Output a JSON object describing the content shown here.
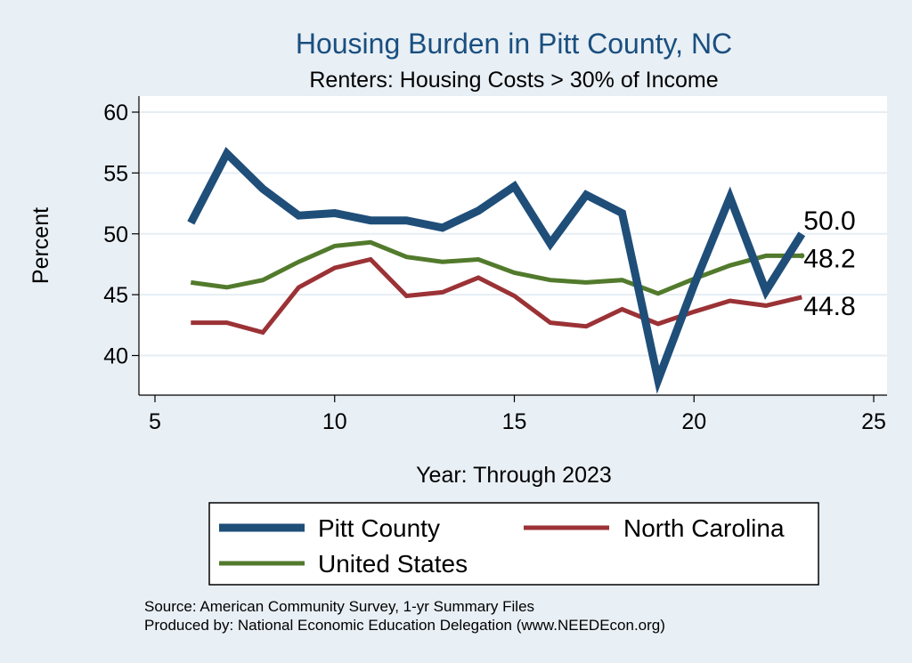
{
  "chart_data": {
    "type": "line",
    "title": "Housing Burden in Pitt County, NC",
    "subtitle": "Renters: Housing Costs > 30% of Income",
    "xlabel": "Year: Through 2023",
    "ylabel": "Percent",
    "xlim": [
      5,
      25
    ],
    "ylim": [
      37,
      61
    ],
    "xticks": [
      5,
      10,
      15,
      20,
      25
    ],
    "yticks": [
      40,
      45,
      50,
      55,
      60
    ],
    "grid": true,
    "x": [
      6,
      7,
      8,
      9,
      10,
      11,
      12,
      13,
      14,
      15,
      16,
      17,
      18,
      19,
      20,
      21,
      22,
      23
    ],
    "series": [
      {
        "key": "pitt",
        "name": "Pitt County",
        "color": "#1f4e79",
        "values": [
          50.9,
          56.6,
          53.7,
          51.5,
          51.7,
          51.1,
          51.1,
          50.5,
          51.9,
          53.9,
          49.2,
          53.2,
          51.7,
          38.0,
          45.8,
          53.0,
          45.3,
          50.0
        ],
        "end_label": "50.0"
      },
      {
        "key": "nc",
        "name": "North Carolina",
        "color": "#9b3236",
        "values": [
          42.7,
          42.7,
          41.9,
          45.6,
          47.2,
          47.9,
          44.9,
          45.2,
          46.4,
          44.9,
          42.7,
          42.4,
          43.8,
          42.6,
          43.6,
          44.5,
          44.1,
          44.8
        ],
        "end_label": "44.8"
      },
      {
        "key": "us",
        "name": "United States",
        "color": "#527a2c",
        "values": [
          46.0,
          45.6,
          46.2,
          47.7,
          49.0,
          49.3,
          48.1,
          47.7,
          47.9,
          46.8,
          46.2,
          46.0,
          46.2,
          45.1,
          46.3,
          47.4,
          48.2,
          48.2
        ],
        "end_label": "48.2"
      }
    ],
    "legend": {
      "placement": "bottom",
      "order": [
        "pitt",
        "nc",
        "us"
      ]
    }
  },
  "source": {
    "line1": "Source: American Community Survey, 1-yr Summary Files",
    "line2": "Produced by: National Economic Education Delegation (www.NEEDEcon.org)"
  }
}
